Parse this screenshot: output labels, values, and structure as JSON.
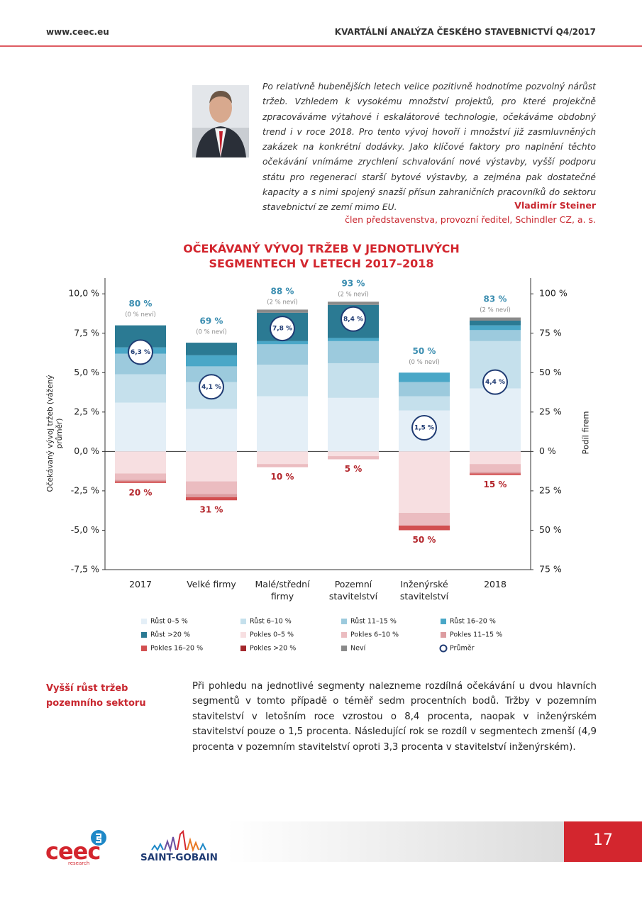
{
  "header": {
    "url": "www.ceec.eu",
    "title": "KVARTÁLNÍ ANALÝZA ČESKÉHO STAVEBNICTVÍ Q4/2017"
  },
  "quote": {
    "text": "Po relativně hubenějších letech velice pozitivně hodnotíme pozvolný nárůst tržeb. Vzhledem k vysokému množství projektů, pro které projekčně zpracováváme výtahové i eskalátorové technologie, očekáváme obdobný trend i v roce 2018. Pro tento vývoj hovoří i množství již zasmluvněných zakázek na konkrétní dodávky. Jako klíčové faktory pro naplnění těchto očekávání vnímáme zrychlení schvalování nové výstavby, vyšší podporu státu pro regeneraci starší bytové výstavby, a zejména pak dostatečné kapacity a s nimi spojený snazší přísun zahraničních pracovníků do sektoru stavebnictví ze zemí mimo EU.",
    "author": "Vladimír Steiner",
    "role": "člen představenstva, provozní ředitel, Schindler CZ, a. s."
  },
  "chart_data": {
    "type": "bar",
    "stacked": true,
    "title": "OČEKÁVANÝ VÝVOJ TRŽEB V JEDNOTLIVÝCH SEGMENTECH V LETECH 2017–2018",
    "ylabel": "Očekávaný vývoj tržeb (vážený průměr)",
    "y2label": "Podíl firem",
    "categories": [
      "2017",
      "Velké firmy",
      "Malé/střední firmy",
      "Pozemní stavitelství",
      "Inženýrské stavitelství",
      "2018"
    ],
    "ylim": [
      -7.5,
      11
    ],
    "y2lim": [
      -75,
      110
    ],
    "yticks": [
      {
        "value": 10,
        "label": "10,0 %"
      },
      {
        "value": 7.5,
        "label": "7,5 %"
      },
      {
        "value": 5,
        "label": "5,0 %"
      },
      {
        "value": 2.5,
        "label": "2,5 %"
      },
      {
        "value": 0,
        "label": "0,0 %"
      },
      {
        "value": -2.5,
        "label": "-2,5 %"
      },
      {
        "value": -5,
        "label": "-5,0 %"
      },
      {
        "value": -7.5,
        "label": "-7,5 %"
      }
    ],
    "y2ticks": [
      {
        "value": 100,
        "label": "100 %"
      },
      {
        "value": 75,
        "label": "75 %"
      },
      {
        "value": 50,
        "label": "50 %"
      },
      {
        "value": 25,
        "label": "25 %"
      },
      {
        "value": 0,
        "label": "0 %"
      },
      {
        "value": -25,
        "label": "25 %"
      },
      {
        "value": -50,
        "label": "50 %"
      },
      {
        "value": -75,
        "label": "75 %"
      }
    ],
    "series": [
      {
        "name": "Růst 0–5 %",
        "color": "#e4eff7",
        "axis": "y2",
        "values": [
          31,
          27,
          35,
          34,
          26,
          40
        ]
      },
      {
        "name": "Růst 6–10 %",
        "color": "#c5e0ec",
        "axis": "y2",
        "values": [
          18,
          17,
          20,
          22,
          9,
          30
        ]
      },
      {
        "name": "Růst 11–15 %",
        "color": "#9ccadd",
        "axis": "y2",
        "values": [
          13,
          10,
          13,
          14,
          9,
          7
        ]
      },
      {
        "name": "Růst 16–20 %",
        "color": "#4aa7c7",
        "axis": "y2",
        "values": [
          4,
          7,
          2,
          2,
          6,
          3
        ]
      },
      {
        "name": "Růst >20 %",
        "color": "#2b7a93",
        "axis": "y2",
        "values": [
          14,
          8,
          18,
          21,
          0,
          3
        ]
      },
      {
        "name": "Pokles 0–5 %",
        "color": "#f7dfe1",
        "axis": "y2",
        "values": [
          -14,
          -19,
          -8,
          -3,
          -39,
          -8
        ]
      },
      {
        "name": "Pokles 6–10 %",
        "color": "#ebbcc0",
        "axis": "y2",
        "values": [
          -4,
          -8,
          -2,
          -2,
          -8,
          -5
        ]
      },
      {
        "name": "Pokles 11–15 %",
        "color": "#dc9ca0",
        "axis": "y2",
        "values": [
          -1,
          -2,
          0,
          0,
          0,
          -1
        ]
      },
      {
        "name": "Pokles 16–20 %",
        "color": "#d24f50",
        "axis": "y2",
        "values": [
          -1,
          -2,
          0,
          0,
          -3,
          -1
        ]
      },
      {
        "name": "Pokles >20 %",
        "color": "#a3272b",
        "axis": "y2",
        "values": [
          0,
          0,
          0,
          0,
          0,
          0
        ]
      },
      {
        "name": "Neví",
        "color": "#8a8a8a",
        "axis": "y2",
        "values": [
          0,
          0,
          2,
          2,
          0,
          2
        ],
        "value_labels": [
          "(0 % neví)",
          "(0 % neví)",
          "(2 % neví)",
          "(2 % neví)",
          "(0 % neví)",
          "(2 % neví)"
        ]
      },
      {
        "name": "Průměr",
        "color": "#1f3b73",
        "marker": "circle",
        "values": [
          6.3,
          4.1,
          7.8,
          8.4,
          1.5,
          4.4
        ],
        "value_labels": [
          "6,3 %",
          "4,1 %",
          "7,8 %",
          "8,4 %",
          "1,5 %",
          "4,4 %"
        ]
      }
    ],
    "growth_labels": {
      "color": "#3a8db0",
      "values": [
        80,
        69,
        88,
        93,
        50,
        83
      ],
      "value_labels": [
        "80 %",
        "69 %",
        "88 %",
        "93 %",
        "50 %",
        "83 %"
      ]
    },
    "decline_labels": {
      "color": "#b3262c",
      "values": [
        -20,
        -31,
        -10,
        -5,
        -50,
        -15
      ],
      "value_labels": [
        "20 %",
        "31 %",
        "10 %",
        "5 %",
        "50 %",
        "15 %"
      ]
    }
  },
  "section": {
    "heading": "Vyšší růst tržeb pozemního sektoru",
    "text": "Při pohledu na jednotlivé segmenty nalezneme rozdílná očekávání u dvou hlavních segmentů v tomto případě o téměř sedm procentních bodů. Tržby v pozemním stavitelství v letošním roce vzrostou o 8,4 procenta, naopak v inženýrském stavitelství pouze o 1,5 procenta. Následující rok se rozdíl v segmentech zmenší (4,9 procenta v pozemním stavitelství oproti 3,3 procenta v stavitelství inženýrském)."
  },
  "footer": {
    "logo": "ceec",
    "logo_sub": "research",
    "partner": "SAINT-GOBAIN",
    "page": "17"
  }
}
